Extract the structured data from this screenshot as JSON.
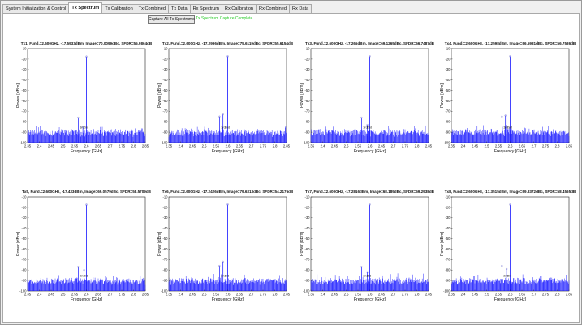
{
  "tabs": [
    {
      "label": "System Initialization & Control",
      "active": false
    },
    {
      "label": "Tx Spectrum",
      "active": true
    },
    {
      "label": "Tx Calibration",
      "active": false
    },
    {
      "label": "Tx Combined",
      "active": false
    },
    {
      "label": "Tx Data",
      "active": false
    },
    {
      "label": "Rx Spectrum",
      "active": false
    },
    {
      "label": "Rx Calibration",
      "active": false
    },
    {
      "label": "Rx Combined",
      "active": false
    },
    {
      "label": "Rx Data",
      "active": false
    }
  ],
  "toolbar": {
    "capture_label": "Capture All Tx Spectrums",
    "status_text": "Tx Spectrum Capture Complete"
  },
  "colors": {
    "trace": "#1414ff",
    "peak": "#6a6acc",
    "status": "#2ecc2e"
  },
  "chart_data": [
    {
      "type": "line",
      "title": "Tx1, Fund.=2.600GHz, -17.5933dBm, Image=70.0099dBc, SFDR=55.9864dB",
      "xlabel": "Frequency [GHz]",
      "ylabel": "Power [dBm]",
      "xlim": [
        2.35,
        2.85
      ],
      "ylim": [
        -100,
        -10
      ],
      "xticks": [
        "2.35",
        "2.4",
        "2.45",
        "2.5",
        "2.55",
        "2.6",
        "2.65",
        "2.7",
        "2.75",
        "2.8",
        "2.85"
      ],
      "yticks": [
        "-10",
        "-20",
        "-30",
        "-40",
        "-50",
        "-60",
        "-70",
        "-80",
        "-90",
        "-100"
      ],
      "fundamental": {
        "x": 2.6,
        "y": -17.59
      },
      "spurs": [
        {
          "x": 2.565,
          "y": -76
        },
        {
          "x": 2.585,
          "y": -85
        }
      ],
      "peak_labels": [
        "3rd",
        "2nd"
      ],
      "noise_floor": -92
    },
    {
      "type": "line",
      "title": "Tx2, Fund.=2.600GHz, -17.2996dBm, Image=75.6119dBc, SFDR=55.6154dB",
      "xlabel": "Frequency [GHz]",
      "ylabel": "Power [dBm]",
      "xlim": [
        2.35,
        2.85
      ],
      "ylim": [
        -100,
        -10
      ],
      "xticks": [
        "2.35",
        "2.4",
        "2.45",
        "2.5",
        "2.55",
        "2.6",
        "2.65",
        "2.7",
        "2.75",
        "2.8",
        "2.85"
      ],
      "yticks": [
        "-10",
        "-20",
        "-30",
        "-40",
        "-50",
        "-60",
        "-70",
        "-80",
        "-90",
        "-100"
      ],
      "fundamental": {
        "x": 2.6,
        "y": -17.3
      },
      "spurs": [
        {
          "x": 2.565,
          "y": -75
        },
        {
          "x": 2.58,
          "y": -73
        }
      ],
      "peak_labels": [
        "3rd",
        "2nd"
      ],
      "noise_floor": -92
    },
    {
      "type": "line",
      "title": "Tx3, Fund.=2.600GHz, -17.265dBm, Image=69.1265dBc, SFDR=56.7487dB",
      "xlabel": "Frequency [GHz]",
      "ylabel": "Power [dBm]",
      "xlim": [
        2.35,
        2.85
      ],
      "ylim": [
        -100,
        -10
      ],
      "xticks": [
        "2.35",
        "2.4",
        "2.45",
        "2.5",
        "2.55",
        "2.6",
        "2.65",
        "2.7",
        "2.75",
        "2.8",
        "2.85"
      ],
      "yticks": [
        "-10",
        "-20",
        "-30",
        "-40",
        "-50",
        "-60",
        "-70",
        "-80",
        "-90",
        "-100"
      ],
      "fundamental": {
        "x": 2.6,
        "y": -17.27
      },
      "spurs": [
        {
          "x": 2.565,
          "y": -76
        },
        {
          "x": 2.59,
          "y": -83
        }
      ],
      "peak_labels": [
        "3rd",
        "2nd"
      ],
      "noise_floor": -92
    },
    {
      "type": "line",
      "title": "Tx4, Fund.=2.600GHz, -17.2598dBm, Image=66.5981dBc, SFDR=56.7586dB",
      "xlabel": "Frequency [GHz]",
      "ylabel": "Power [dBm]",
      "xlim": [
        2.35,
        2.85
      ],
      "ylim": [
        -100,
        -10
      ],
      "xticks": [
        "2.35",
        "2.4",
        "2.45",
        "2.5",
        "2.55",
        "2.6",
        "2.65",
        "2.7",
        "2.75",
        "2.8",
        "2.85"
      ],
      "yticks": [
        "-10",
        "-20",
        "-30",
        "-40",
        "-50",
        "-60",
        "-70",
        "-80",
        "-90",
        "-100"
      ],
      "fundamental": {
        "x": 2.6,
        "y": -17.26
      },
      "spurs": [
        {
          "x": 2.565,
          "y": -75
        },
        {
          "x": 2.58,
          "y": -74
        }
      ],
      "peak_labels": [
        "3rd",
        "2nd"
      ],
      "noise_floor": -92
    },
    {
      "type": "line",
      "title": "Tx5, Fund.=2.600GHz, -17.433dBm, Image=69.0579dBc, SFDR=58.5709dB",
      "xlabel": "Frequency [GHz]",
      "ylabel": "Power [dBm]",
      "xlim": [
        2.35,
        2.85
      ],
      "ylim": [
        -100,
        -10
      ],
      "xticks": [
        "2.35",
        "2.4",
        "2.45",
        "2.5",
        "2.55",
        "2.6",
        "2.65",
        "2.7",
        "2.75",
        "2.8",
        "2.85"
      ],
      "yticks": [
        "-10",
        "-20",
        "-30",
        "-40",
        "-50",
        "-60",
        "-70",
        "-80",
        "-90",
        "-100"
      ],
      "fundamental": {
        "x": 2.6,
        "y": -17.43
      },
      "spurs": [
        {
          "x": 2.565,
          "y": -77
        },
        {
          "x": 2.59,
          "y": -80
        }
      ],
      "peak_labels": [
        "2nd",
        "3rd"
      ],
      "noise_floor": -92
    },
    {
      "type": "line",
      "title": "Tx6, Fund.=2.600GHz, -17.2426dBm, Image=79.6313dBc, SFDR=54.2176dB",
      "xlabel": "Frequency [GHz]",
      "ylabel": "Power [dBm]",
      "xlim": [
        2.35,
        2.85
      ],
      "ylim": [
        -100,
        -10
      ],
      "xticks": [
        "2.35",
        "2.4",
        "2.45",
        "2.5",
        "2.55",
        "2.6",
        "2.65",
        "2.7",
        "2.75",
        "2.8",
        "2.85"
      ],
      "yticks": [
        "-10",
        "-20",
        "-30",
        "-40",
        "-50",
        "-60",
        "-70",
        "-80",
        "-90",
        "-100"
      ],
      "fundamental": {
        "x": 2.6,
        "y": -17.24
      },
      "spurs": [
        {
          "x": 2.565,
          "y": -76
        },
        {
          "x": 2.58,
          "y": -72
        }
      ],
      "peak_labels": [
        "2nd",
        "3rd"
      ],
      "noise_floor": -92
    },
    {
      "type": "line",
      "title": "Tx7, Fund.=2.600GHz, -17.2816dBm, Image=68.189dBc, SFDR=59.2938dB",
      "xlabel": "Frequency [GHz]",
      "ylabel": "Power [dBm]",
      "xlim": [
        2.35,
        2.85
      ],
      "ylim": [
        -100,
        -10
      ],
      "xticks": [
        "2.35",
        "2.4",
        "2.45",
        "2.5",
        "2.55",
        "2.6",
        "2.65",
        "2.7",
        "2.75",
        "2.8",
        "2.85"
      ],
      "yticks": [
        "-10",
        "-20",
        "-30",
        "-40",
        "-50",
        "-60",
        "-70",
        "-80",
        "-90",
        "-100"
      ],
      "fundamental": {
        "x": 2.6,
        "y": -17.28
      },
      "spurs": [
        {
          "x": 2.565,
          "y": -77
        },
        {
          "x": 2.59,
          "y": -82
        }
      ],
      "peak_labels": [
        "2nd",
        "3rd"
      ],
      "noise_floor": -92
    },
    {
      "type": "line",
      "title": "Tx8, Fund.=2.600GHz, -17.3515dBm, Image=69.8372dBc, SFDR=58.4565dB",
      "xlabel": "Frequency [GHz]",
      "ylabel": "Power [dBm]",
      "xlim": [
        2.35,
        2.85
      ],
      "ylim": [
        -100,
        -10
      ],
      "xticks": [
        "2.35",
        "2.4",
        "2.45",
        "2.5",
        "2.55",
        "2.6",
        "2.65",
        "2.7",
        "2.75",
        "2.8",
        "2.85"
      ],
      "yticks": [
        "-10",
        "-20",
        "-30",
        "-40",
        "-50",
        "-60",
        "-70",
        "-80",
        "-90",
        "-100"
      ],
      "fundamental": {
        "x": 2.6,
        "y": -17.35
      },
      "spurs": [
        {
          "x": 2.565,
          "y": -76
        },
        {
          "x": 2.585,
          "y": -79
        }
      ],
      "peak_labels": [
        "2nd",
        "3rd"
      ],
      "noise_floor": -92
    }
  ]
}
